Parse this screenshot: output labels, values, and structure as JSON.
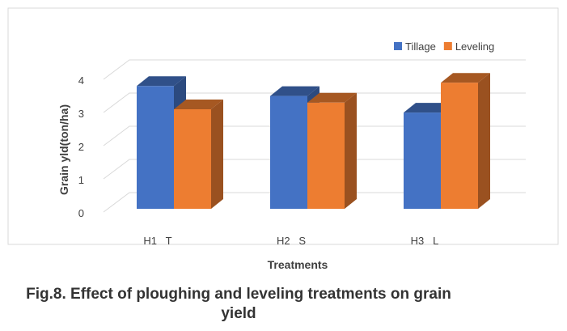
{
  "chart_data": {
    "type": "bar3d",
    "caption": "Fig.8. Effect of ploughing and leveling treatments on grain yield",
    "x_label": "Treatments",
    "y_label": "Grain yld(ton/ha)",
    "categories": [
      "H1   T",
      "H2   S",
      "H3   L"
    ],
    "series": [
      {
        "name": "Tillage",
        "color": "#4472c4",
        "values": [
          3.7,
          3.4,
          2.9
        ]
      },
      {
        "name": "Leveling",
        "color": "#ed7d31",
        "values": [
          3.0,
          3.2,
          3.8
        ]
      }
    ],
    "ylim": [
      0,
      4
    ],
    "yticks": [
      0,
      1,
      2,
      3,
      4
    ],
    "grid": true,
    "legend": "top-right"
  }
}
